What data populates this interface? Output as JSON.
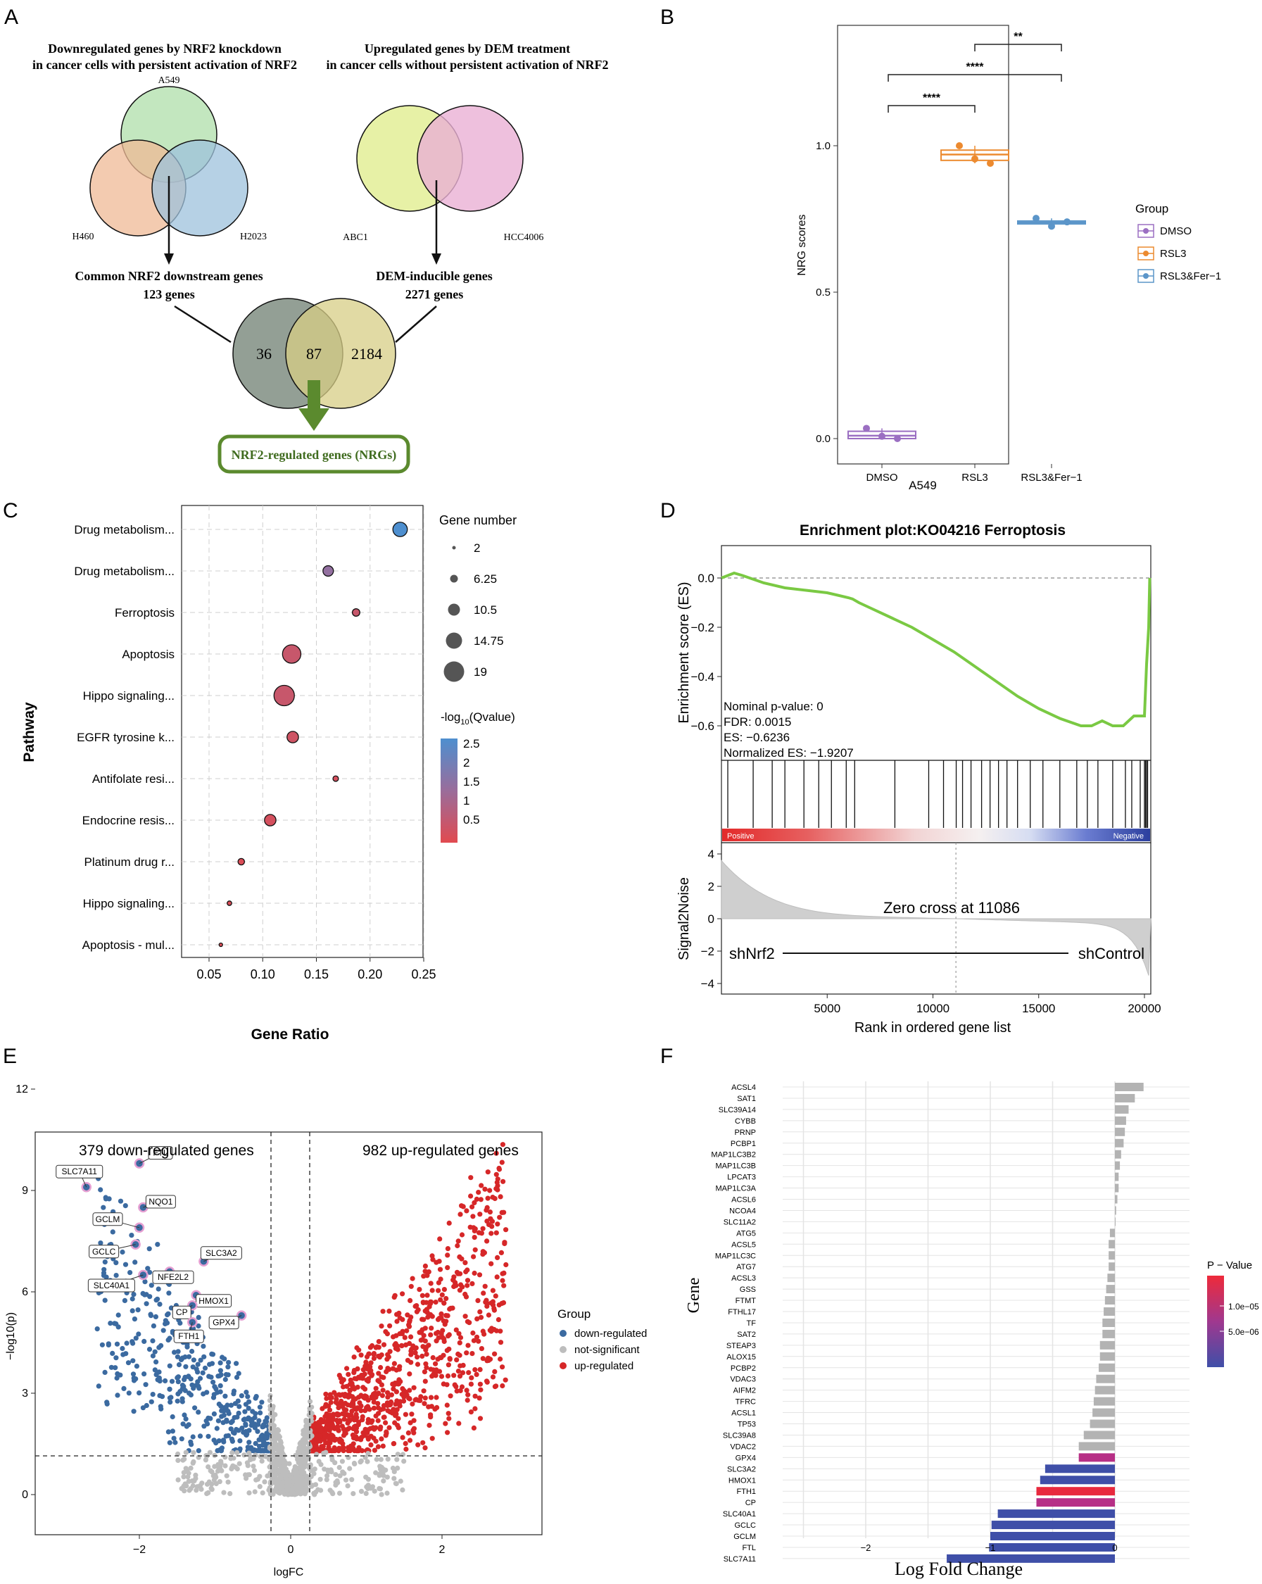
{
  "panel_labels": {
    "a": "A",
    "b": "B",
    "c": "C",
    "d": "D",
    "e": "E",
    "f": "F"
  },
  "panel_a": {
    "left_title_1": "Downregulated genes by NRF2 knockdown",
    "left_title_2": "in cancer cells with persistent activation of NRF2",
    "right_title_1": "Upregulated genes by DEM treatment",
    "right_title_2": "in cancer cells without persistent activation of NRF2",
    "set_a549": "A549",
    "set_h460": "H460",
    "set_h2023": "H2023",
    "set_abc1": "ABC1",
    "set_hcc4006": "HCC4006",
    "common_label_1": "Common NRF2 downstream genes",
    "common_label_2": "123 genes",
    "dem_label_1": "DEM-inducible genes",
    "dem_label_2": "2271 genes",
    "only_left": "36",
    "overlap": "87",
    "only_right": "2184",
    "result": "NRF2-regulated genes (NRGs)",
    "colors": {
      "a549": "#b9e3b4",
      "h460": "#efb995",
      "h2023": "#9dc1dc",
      "abc1": "#e4ef9c",
      "hcc4006": "#eab0d4",
      "left_set": "#8d9a8f",
      "right_set": "#d7cd86",
      "overlap_set": "#aebd78",
      "arrow": "#5b8a2e"
    }
  },
  "chart_data": [
    {
      "id": "B",
      "type": "box",
      "xlabel": "A549",
      "ylabel": "NRG scores",
      "ylim": [
        -0.08,
        1.3
      ],
      "yticks": [
        "0.0",
        "0.5",
        "1.0"
      ],
      "categories": [
        "DMSO",
        "RSL3",
        "RSL3&Fer−1"
      ],
      "legend_title": "Group",
      "legend": [
        "DMSO",
        "RSL3",
        "RSL3&Fer−1"
      ],
      "colors": [
        "#9b6fc2",
        "#ec8a2f",
        "#5b95c9"
      ],
      "boxes": [
        {
          "q1": 0.0,
          "median": 0.01,
          "q3": 0.025,
          "min": 0.0,
          "max": 0.035,
          "points": [
            0.035,
            0.008,
            0.0
          ]
        },
        {
          "q1": 0.95,
          "median": 0.97,
          "q3": 0.985,
          "min": 0.94,
          "max": 1.0,
          "points": [
            1.0,
            0.955,
            0.94
          ]
        },
        {
          "q1": 0.733,
          "median": 0.738,
          "q3": 0.743,
          "min": 0.725,
          "max": 0.752,
          "points": [
            0.752,
            0.725,
            0.74
          ]
        }
      ],
      "significance": [
        "****",
        "****",
        "**"
      ]
    },
    {
      "id": "C",
      "type": "scatter",
      "xlabel": "Gene Ratio",
      "ylabel": "Pathway",
      "xlim": [
        0.025,
        0.26
      ],
      "xticks": [
        "0.05",
        "0.10",
        "0.15",
        "0.20",
        "0.25"
      ],
      "size_legend_title": "Gene number",
      "size_legend": [
        "2",
        "6.25",
        "10.5",
        "14.75",
        "19"
      ],
      "color_legend_title_pre": "-log",
      "color_legend_title_sub": "10",
      "color_legend_title_post": "(Qvalue)",
      "color_legend": [
        "2.5",
        "2",
        "1.5",
        "1",
        "0.5"
      ],
      "categories": [
        "Drug metabolism...",
        "Drug metabolism...",
        "Ferroptosis",
        "Apoptosis",
        "Hippo signaling...",
        "EGFR tyrosine k...",
        "Antifolate resi...",
        "Endocrine resis...",
        "Platinum drug r...",
        "Hippo signaling...",
        "Apoptosis - mul..."
      ],
      "x": [
        0.228,
        0.161,
        0.187,
        0.127,
        0.12,
        0.128,
        0.168,
        0.107,
        0.08,
        0.069,
        0.061
      ],
      "gene_number": [
        13,
        9,
        6,
        17,
        19,
        10,
        4,
        10,
        5,
        3,
        2
      ],
      "neg_log10_q": [
        2.5,
        1.5,
        0.7,
        0.7,
        0.7,
        0.6,
        0.5,
        0.5,
        0.4,
        0.4,
        0.4
      ]
    },
    {
      "id": "D",
      "type": "line",
      "title": "Enrichment plot:KO04216 Ferroptosis",
      "ylabel": "Enrichment score (ES)",
      "ylabel2": "Signal2Noise",
      "xlabel": "Rank in ordered gene list",
      "xticks": [
        "5000",
        "10000",
        "15000",
        "20000"
      ],
      "yticks": [
        "0.0",
        "−0.2",
        "−0.4",
        "−0.6"
      ],
      "yticks2": [
        "4",
        "2",
        "0",
        "−2",
        "−4"
      ],
      "x": [
        0,
        600,
        1000,
        2000,
        3000,
        4000,
        5000,
        5500,
        6000,
        6200,
        6500,
        7000,
        8000,
        9000,
        10000,
        11000,
        12000,
        13000,
        14000,
        15000,
        16000,
        17000,
        17500,
        18000,
        18500,
        19000,
        19500,
        20000,
        20100,
        20200,
        20250
      ],
      "y": [
        0.0,
        0.02,
        0.01,
        -0.02,
        -0.04,
        -0.05,
        -0.06,
        -0.07,
        -0.08,
        -0.085,
        -0.1,
        -0.12,
        -0.16,
        -0.2,
        -0.25,
        -0.3,
        -0.36,
        -0.42,
        -0.48,
        -0.53,
        -0.57,
        -0.6,
        -0.6,
        -0.58,
        -0.6,
        -0.6,
        -0.56,
        -0.56,
        -0.35,
        -0.2,
        0.0
      ],
      "hits": [
        300,
        1500,
        2400,
        3000,
        3900,
        4600,
        5200,
        5900,
        6300,
        8200,
        9800,
        10500,
        11100,
        11400,
        11800,
        12300,
        12700,
        13100,
        13500,
        14000,
        14600,
        15200,
        16000,
        16800,
        17300,
        17800,
        18500,
        19100,
        19400,
        19800,
        20000,
        20050,
        20100,
        20150
      ],
      "stats": [
        "Nominal p-value: 0",
        "FDR: 0.0015",
        "ES: −0.6236",
        "Normalized ES: −1.9207"
      ],
      "positive_label": "Positive",
      "negative_label": "Negative",
      "zero_cross": "Zero cross at 11086",
      "zero_cross_x": 11086,
      "left_group": "shNrf2",
      "right_group": "shControl"
    },
    {
      "id": "E",
      "type": "scatter",
      "xlabel": "logFC",
      "ylabel": "−log10(p)",
      "xticks": [
        "−2",
        "0",
        "2"
      ],
      "yticks": [
        "0",
        "3",
        "6",
        "9",
        "12"
      ],
      "xlim": [
        -3.3,
        3.3
      ],
      "ylim": [
        -0.3,
        12
      ],
      "down_label": "379 down-regulated genes",
      "up_label": "982 up-regulated genes",
      "legend_title": "Group",
      "legend": [
        "down-regulated",
        "not-significant",
        "up-regulated"
      ],
      "colors": [
        "#3b6aa0",
        "#bdbdbd",
        "#d62728"
      ],
      "labeled_genes": [
        {
          "gene": "FTL",
          "x": -2.0,
          "y": 9.8
        },
        {
          "gene": "SLC7A11",
          "x": -2.7,
          "y": 9.1
        },
        {
          "gene": "NQO1",
          "x": -1.95,
          "y": 8.5
        },
        {
          "gene": "GCLM",
          "x": -2.0,
          "y": 7.9
        },
        {
          "gene": "GCLC",
          "x": -2.05,
          "y": 7.4
        },
        {
          "gene": "SLC3A2",
          "x": -1.15,
          "y": 6.9
        },
        {
          "gene": "SLC40A1",
          "x": -1.95,
          "y": 6.5
        },
        {
          "gene": "NFE2L2",
          "x": -1.6,
          "y": 6.6
        },
        {
          "gene": "HMOX1",
          "x": -1.25,
          "y": 5.9
        },
        {
          "gene": "CP",
          "x": -1.3,
          "y": 5.6
        },
        {
          "gene": "FTH1",
          "x": -1.3,
          "y": 5.1
        },
        {
          "gene": "GPX4",
          "x": -0.65,
          "y": 5.3
        }
      ]
    },
    {
      "id": "F",
      "type": "bar",
      "xlabel": "Log Fold Change",
      "ylabel": "Gene",
      "xticks": [
        "−2",
        "−1",
        "0"
      ],
      "xlim": [
        -2.7,
        0.3
      ],
      "legend_title": "P − Value",
      "legend": [
        "1.0e−05",
        "5.0e−06"
      ],
      "categories": [
        "ACSL4",
        "SAT1",
        "SLC39A14",
        "CYBB",
        "PRNP",
        "PCBP1",
        "MAP1LC3B2",
        "MAP1LC3B",
        "LPCAT3",
        "MAP1LC3A",
        "ACSL6",
        "NCOA4",
        "SLC11A2",
        "ATG5",
        "ACSL5",
        "MAP1LC3C",
        "ATG7",
        "ACSL3",
        "GSS",
        "FTMT",
        "FTHL17",
        "TF",
        "SAT2",
        "STEAP3",
        "ALOX15",
        "PCBP2",
        "VDAC3",
        "AIFM2",
        "TFRC",
        "ACSL1",
        "TP53",
        "SLC39A8",
        "VDAC2",
        "GPX4",
        "SLC3A2",
        "HMOX1",
        "FTH1",
        "CP",
        "SLC40A1",
        "GCLC",
        "GCLM",
        "FTL",
        "SLC7A11"
      ],
      "values": [
        0.23,
        0.16,
        0.11,
        0.09,
        0.08,
        0.07,
        0.05,
        0.04,
        0.03,
        0.03,
        0.02,
        0.01,
        0.0,
        -0.04,
        -0.05,
        -0.05,
        -0.05,
        -0.06,
        -0.07,
        -0.08,
        -0.09,
        -0.1,
        -0.1,
        -0.12,
        -0.12,
        -0.13,
        -0.15,
        -0.16,
        -0.17,
        -0.18,
        -0.2,
        -0.25,
        -0.29,
        -0.29,
        -0.56,
        -0.6,
        -0.63,
        -0.63,
        -0.94,
        -0.99,
        -1.0,
        -1.01,
        -1.35
      ],
      "colors": [
        "#b3b3b3",
        "#b3b3b3",
        "#b3b3b3",
        "#b3b3b3",
        "#b3b3b3",
        "#b3b3b3",
        "#b3b3b3",
        "#b3b3b3",
        "#b3b3b3",
        "#b3b3b3",
        "#b3b3b3",
        "#b3b3b3",
        "#b3b3b3",
        "#b3b3b3",
        "#b3b3b3",
        "#b3b3b3",
        "#b3b3b3",
        "#b3b3b3",
        "#b3b3b3",
        "#b3b3b3",
        "#b3b3b3",
        "#b3b3b3",
        "#b3b3b3",
        "#b3b3b3",
        "#b3b3b3",
        "#b3b3b3",
        "#b3b3b3",
        "#b3b3b3",
        "#b3b3b3",
        "#b3b3b3",
        "#b3b3b3",
        "#b3b3b3",
        "#b3b3b3",
        "#b72f86",
        "#3f4fa8",
        "#3f4fa8",
        "#e8293e",
        "#b72f86",
        "#3f4fa8",
        "#3f4fa8",
        "#3f4fa8",
        "#3f4fa8",
        "#3f4fa8"
      ]
    }
  ]
}
